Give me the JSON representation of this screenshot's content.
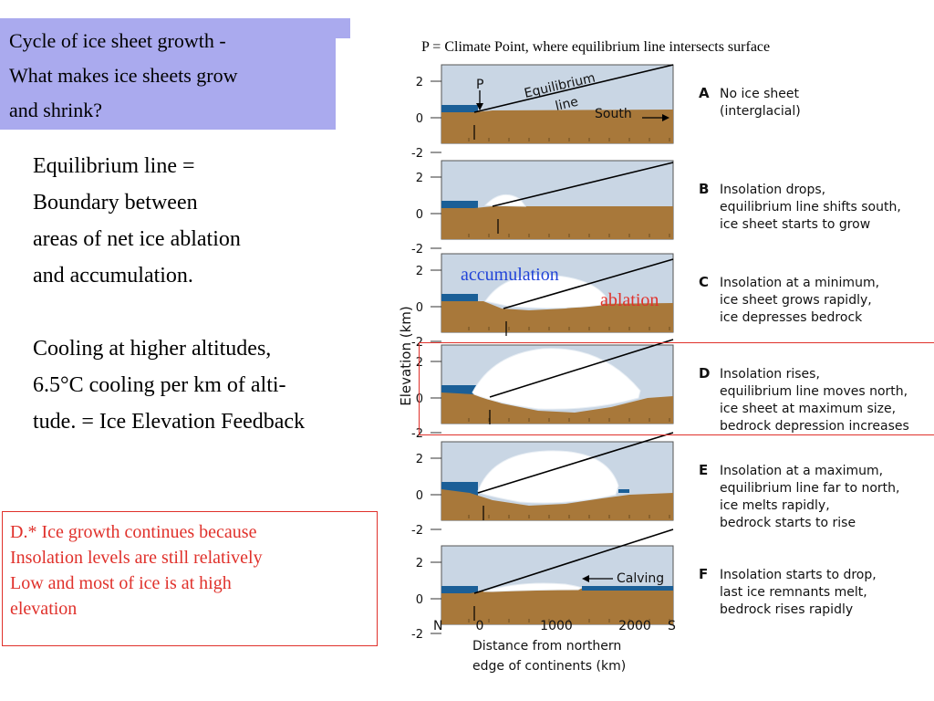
{
  "title": "Cycle of ice sheet growth -\nWhat makes ice sheets grow\nand shrink?",
  "caption": "P = Climate Point, where equilibrium line intersects surface",
  "body": {
    "para1": "Equilibrium line =\nBoundary between\nareas of net ice ablation\nand accumulation.",
    "para2": "Cooling at higher altitudes,\n6.5°C cooling per km of alti-\ntude. = Ice Elevation Feedback"
  },
  "note": "D.* Ice growth continues because\nInsolation levels are still relatively\nLow and most of ice is at high\nelevation",
  "overlay_labels": {
    "accumulation": "accumulation",
    "ablation": "ablation"
  },
  "figure": {
    "y_axis_label": "Elevation (km)",
    "y_ticks": [
      "2",
      "0",
      "-2"
    ],
    "x_ticks": [
      "0",
      "1000",
      "2000"
    ],
    "x_left": "N",
    "x_right": "S",
    "x_label_line1": "Distance from northern",
    "x_label_line2": "edge of continents (km)",
    "panel_a_labels": {
      "p": "P",
      "equilibrium": "Equilibrium",
      "line": "line",
      "south": "South"
    },
    "calving": "Calving",
    "panels": [
      {
        "letter": "A",
        "lines": [
          "No ice sheet",
          "(interglacial)"
        ]
      },
      {
        "letter": "B",
        "lines": [
          "Insolation drops,",
          "equilibrium line shifts south,",
          "ice sheet starts to grow"
        ]
      },
      {
        "letter": "C",
        "lines": [
          "Insolation at a minimum,",
          "ice sheet grows rapidly,",
          "ice depresses bedrock"
        ]
      },
      {
        "letter": "D",
        "lines": [
          "Insolation rises,",
          "equilibrium line moves north,",
          "ice sheet at maximum size,",
          "bedrock depression increases"
        ]
      },
      {
        "letter": "E",
        "lines": [
          "Insolation at a maximum,",
          "equilibrium line far to north,",
          "ice melts rapidly,",
          "bedrock starts to rise"
        ]
      },
      {
        "letter": "F",
        "lines": [
          "Insolation starts to drop,",
          "last ice remnants melt,",
          "bedrock rises rapidly"
        ]
      }
    ],
    "colors": {
      "sky": "#c9d6e4",
      "land": "#a8783a",
      "sea": "#1b5f97",
      "ice": "#ffffff"
    }
  }
}
